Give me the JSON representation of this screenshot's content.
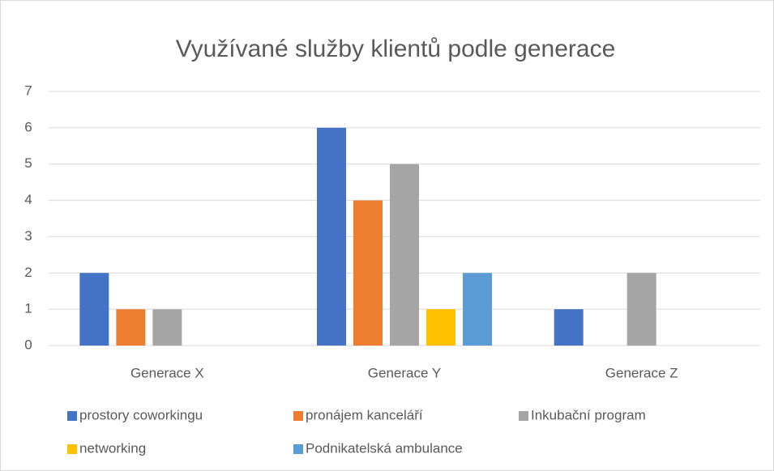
{
  "chart_data": {
    "type": "bar",
    "title": "Využívané služby klientů podle generace",
    "categories": [
      "Generace X",
      "Generace Y",
      "Generace Z"
    ],
    "series": [
      {
        "name": "prostory coworkingu",
        "color": "#4472c4",
        "values": [
          2,
          6,
          1
        ]
      },
      {
        "name": "pronájem kanceláří",
        "color": "#ed7d31",
        "values": [
          1,
          4,
          0
        ]
      },
      {
        "name": "Inkubační program",
        "color": "#a5a5a5",
        "values": [
          1,
          5,
          2
        ]
      },
      {
        "name": "networking",
        "color": "#ffc000",
        "values": [
          0,
          1,
          0
        ]
      },
      {
        "name": "Podnikatelská ambulance",
        "color": "#5b9bd5",
        "values": [
          0,
          2,
          0
        ]
      }
    ],
    "ylim": [
      0,
      7
    ],
    "yticks": [
      0,
      1,
      2,
      3,
      4,
      5,
      6,
      7
    ],
    "grid": true,
    "legend": "bottom"
  }
}
